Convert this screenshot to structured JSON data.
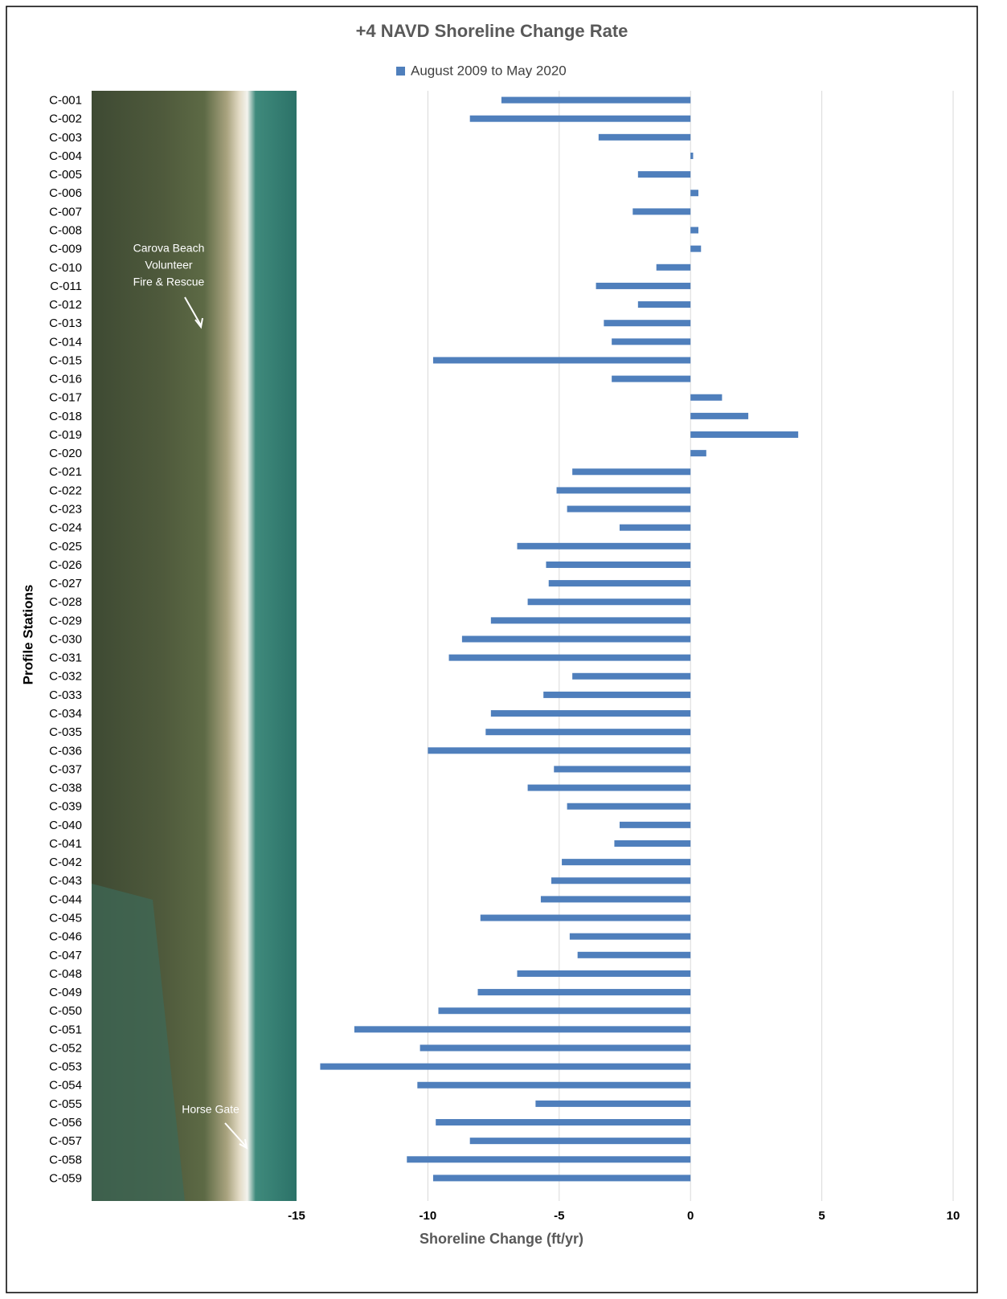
{
  "chart_data": {
    "type": "hbar",
    "title": "+4 NAVD Shoreline Change Rate",
    "x_label": "Shoreline Change (ft/yr)",
    "y_label": "Profile Stations",
    "categories": [
      "C-001",
      "C-002",
      "C-003",
      "C-004",
      "C-005",
      "C-006",
      "C-007",
      "C-008",
      "C-009",
      "C-010",
      "C-011",
      "C-012",
      "C-013",
      "C-014",
      "C-015",
      "C-016",
      "C-017",
      "C-018",
      "C-019",
      "C-020",
      "C-021",
      "C-022",
      "C-023",
      "C-024",
      "C-025",
      "C-026",
      "C-027",
      "C-028",
      "C-029",
      "C-030",
      "C-031",
      "C-032",
      "C-033",
      "C-034",
      "C-035",
      "C-036",
      "C-037",
      "C-038",
      "C-039",
      "C-040",
      "C-041",
      "C-042",
      "C-043",
      "C-044",
      "C-045",
      "C-046",
      "C-047",
      "C-048",
      "C-049",
      "C-050",
      "C-051",
      "C-052",
      "C-053",
      "C-054",
      "C-055",
      "C-056",
      "C-057",
      "C-058",
      "C-059"
    ],
    "series": [
      {
        "name": "August 2009 to May 2020",
        "color": "#4f7fbc",
        "values": [
          -7.2,
          -8.4,
          -3.5,
          0.1,
          -2.0,
          0.3,
          -2.2,
          0.3,
          0.4,
          -1.3,
          -3.6,
          -2.0,
          -3.3,
          -3.0,
          -9.8,
          -3.0,
          1.2,
          2.2,
          4.1,
          0.6,
          -4.5,
          -5.1,
          -4.7,
          -2.7,
          -6.6,
          -5.5,
          -5.4,
          -6.2,
          -7.6,
          -8.7,
          -9.2,
          -4.5,
          -5.6,
          -7.6,
          -7.8,
          -10.0,
          -5.2,
          -6.2,
          -4.7,
          -2.7,
          -2.9,
          -4.9,
          -5.3,
          -5.7,
          -8.0,
          -4.6,
          -4.3,
          -6.6,
          -8.1,
          -9.6,
          -12.8,
          -10.3,
          -14.1,
          -10.4,
          -5.9,
          -9.7,
          -8.4,
          -10.8,
          -9.8
        ]
      }
    ],
    "xlim": [
      -15,
      10
    ],
    "xticks": [
      -15,
      -10,
      -5,
      0,
      5,
      10
    ],
    "grid": true,
    "legend": "top",
    "annotations": [
      {
        "lines": [
          "Carova Beach",
          "Volunteer",
          "Fire & Rescue"
        ]
      },
      {
        "lines": [
          "Horse Gate"
        ]
      }
    ]
  }
}
